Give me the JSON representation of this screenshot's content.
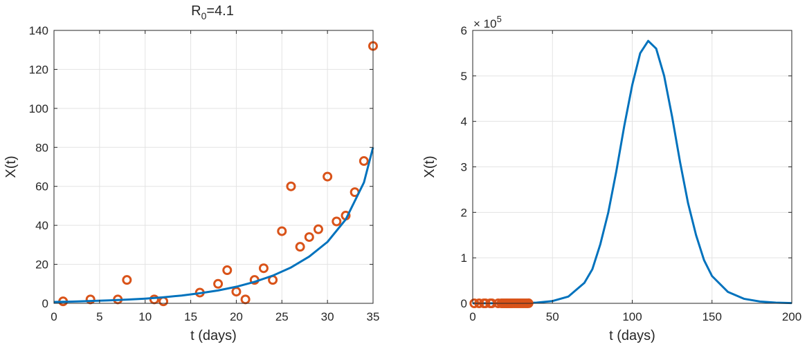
{
  "colors": {
    "fit_line": "#0072BD",
    "data_markers": "#D95319",
    "axes": "#262626",
    "grid": "#E3E3E3",
    "background": "#FFFFFF"
  },
  "chart_data": [
    {
      "type": "scatter",
      "title": "R0=4.1",
      "title_main": "R",
      "title_sub": "0",
      "title_rest": "=4.1",
      "xlabel": "t (days)",
      "ylabel": "X(t)",
      "xlim": [
        0,
        35
      ],
      "ylim": [
        0,
        140
      ],
      "xticks": [
        0,
        5,
        10,
        15,
        20,
        25,
        30,
        35
      ],
      "yticks": [
        0,
        20,
        40,
        60,
        80,
        100,
        120,
        140
      ],
      "grid": true,
      "series": [
        {
          "kind": "markers",
          "marker": "circle",
          "x": [
            1,
            4,
            7,
            8,
            11,
            12,
            16,
            18,
            19,
            20,
            21,
            22,
            23,
            24,
            25,
            26,
            27,
            28,
            29,
            30,
            31,
            32,
            33,
            34,
            35
          ],
          "y": [
            1,
            2,
            2,
            12,
            2,
            1,
            5.5,
            10,
            17,
            6,
            2,
            12,
            18,
            12,
            37,
            60,
            29,
            34,
            38,
            65,
            42,
            45,
            57,
            73,
            132
          ]
        },
        {
          "kind": "line",
          "x": [
            0,
            2,
            4,
            6,
            8,
            10,
            12,
            14,
            16,
            18,
            20,
            22,
            24,
            26,
            28,
            30,
            32,
            34,
            35
          ],
          "y": [
            0.7,
            0.9,
            1.2,
            1.5,
            1.9,
            2.4,
            3.1,
            4.0,
            5.2,
            6.6,
            8.5,
            11.0,
            14.2,
            18.4,
            24.0,
            31.5,
            43.0,
            62.0,
            80.0
          ]
        }
      ]
    },
    {
      "type": "line",
      "xlabel": "t (days)",
      "ylabel": "X(t)",
      "xlim": [
        0,
        200
      ],
      "ylim": [
        0,
        600000
      ],
      "xticks": [
        0,
        50,
        100,
        150,
        200
      ],
      "yticks": [
        0,
        1,
        2,
        3,
        4,
        5,
        6
      ],
      "y_exponent_base": "× 10",
      "y_exponent": "5",
      "grid": true,
      "series": [
        {
          "kind": "line",
          "x": [
            0,
            20,
            40,
            50,
            60,
            70,
            75,
            80,
            85,
            90,
            95,
            100,
            105,
            110,
            115,
            120,
            125,
            130,
            135,
            140,
            145,
            150,
            160,
            170,
            180,
            190,
            200
          ],
          "y": [
            0,
            100,
            1500,
            5000,
            15000,
            45000,
            75000,
            130000,
            200000,
            290000,
            390000,
            480000,
            550000,
            577000,
            560000,
            500000,
            410000,
            310000,
            220000,
            150000,
            95000,
            60000,
            25000,
            10000,
            4000,
            1500,
            600
          ]
        },
        {
          "kind": "markers",
          "marker": "circle",
          "x": [
            1,
            4,
            7,
            8,
            11,
            12,
            16,
            18,
            19,
            20,
            21,
            22,
            23,
            24,
            25,
            26,
            27,
            28,
            29,
            30,
            31,
            32,
            33,
            34,
            35
          ],
          "y": [
            1,
            2,
            2,
            12,
            2,
            1,
            5.5,
            10,
            17,
            6,
            2,
            12,
            18,
            12,
            37,
            60,
            29,
            34,
            38,
            65,
            42,
            45,
            57,
            73,
            132
          ]
        }
      ]
    }
  ]
}
